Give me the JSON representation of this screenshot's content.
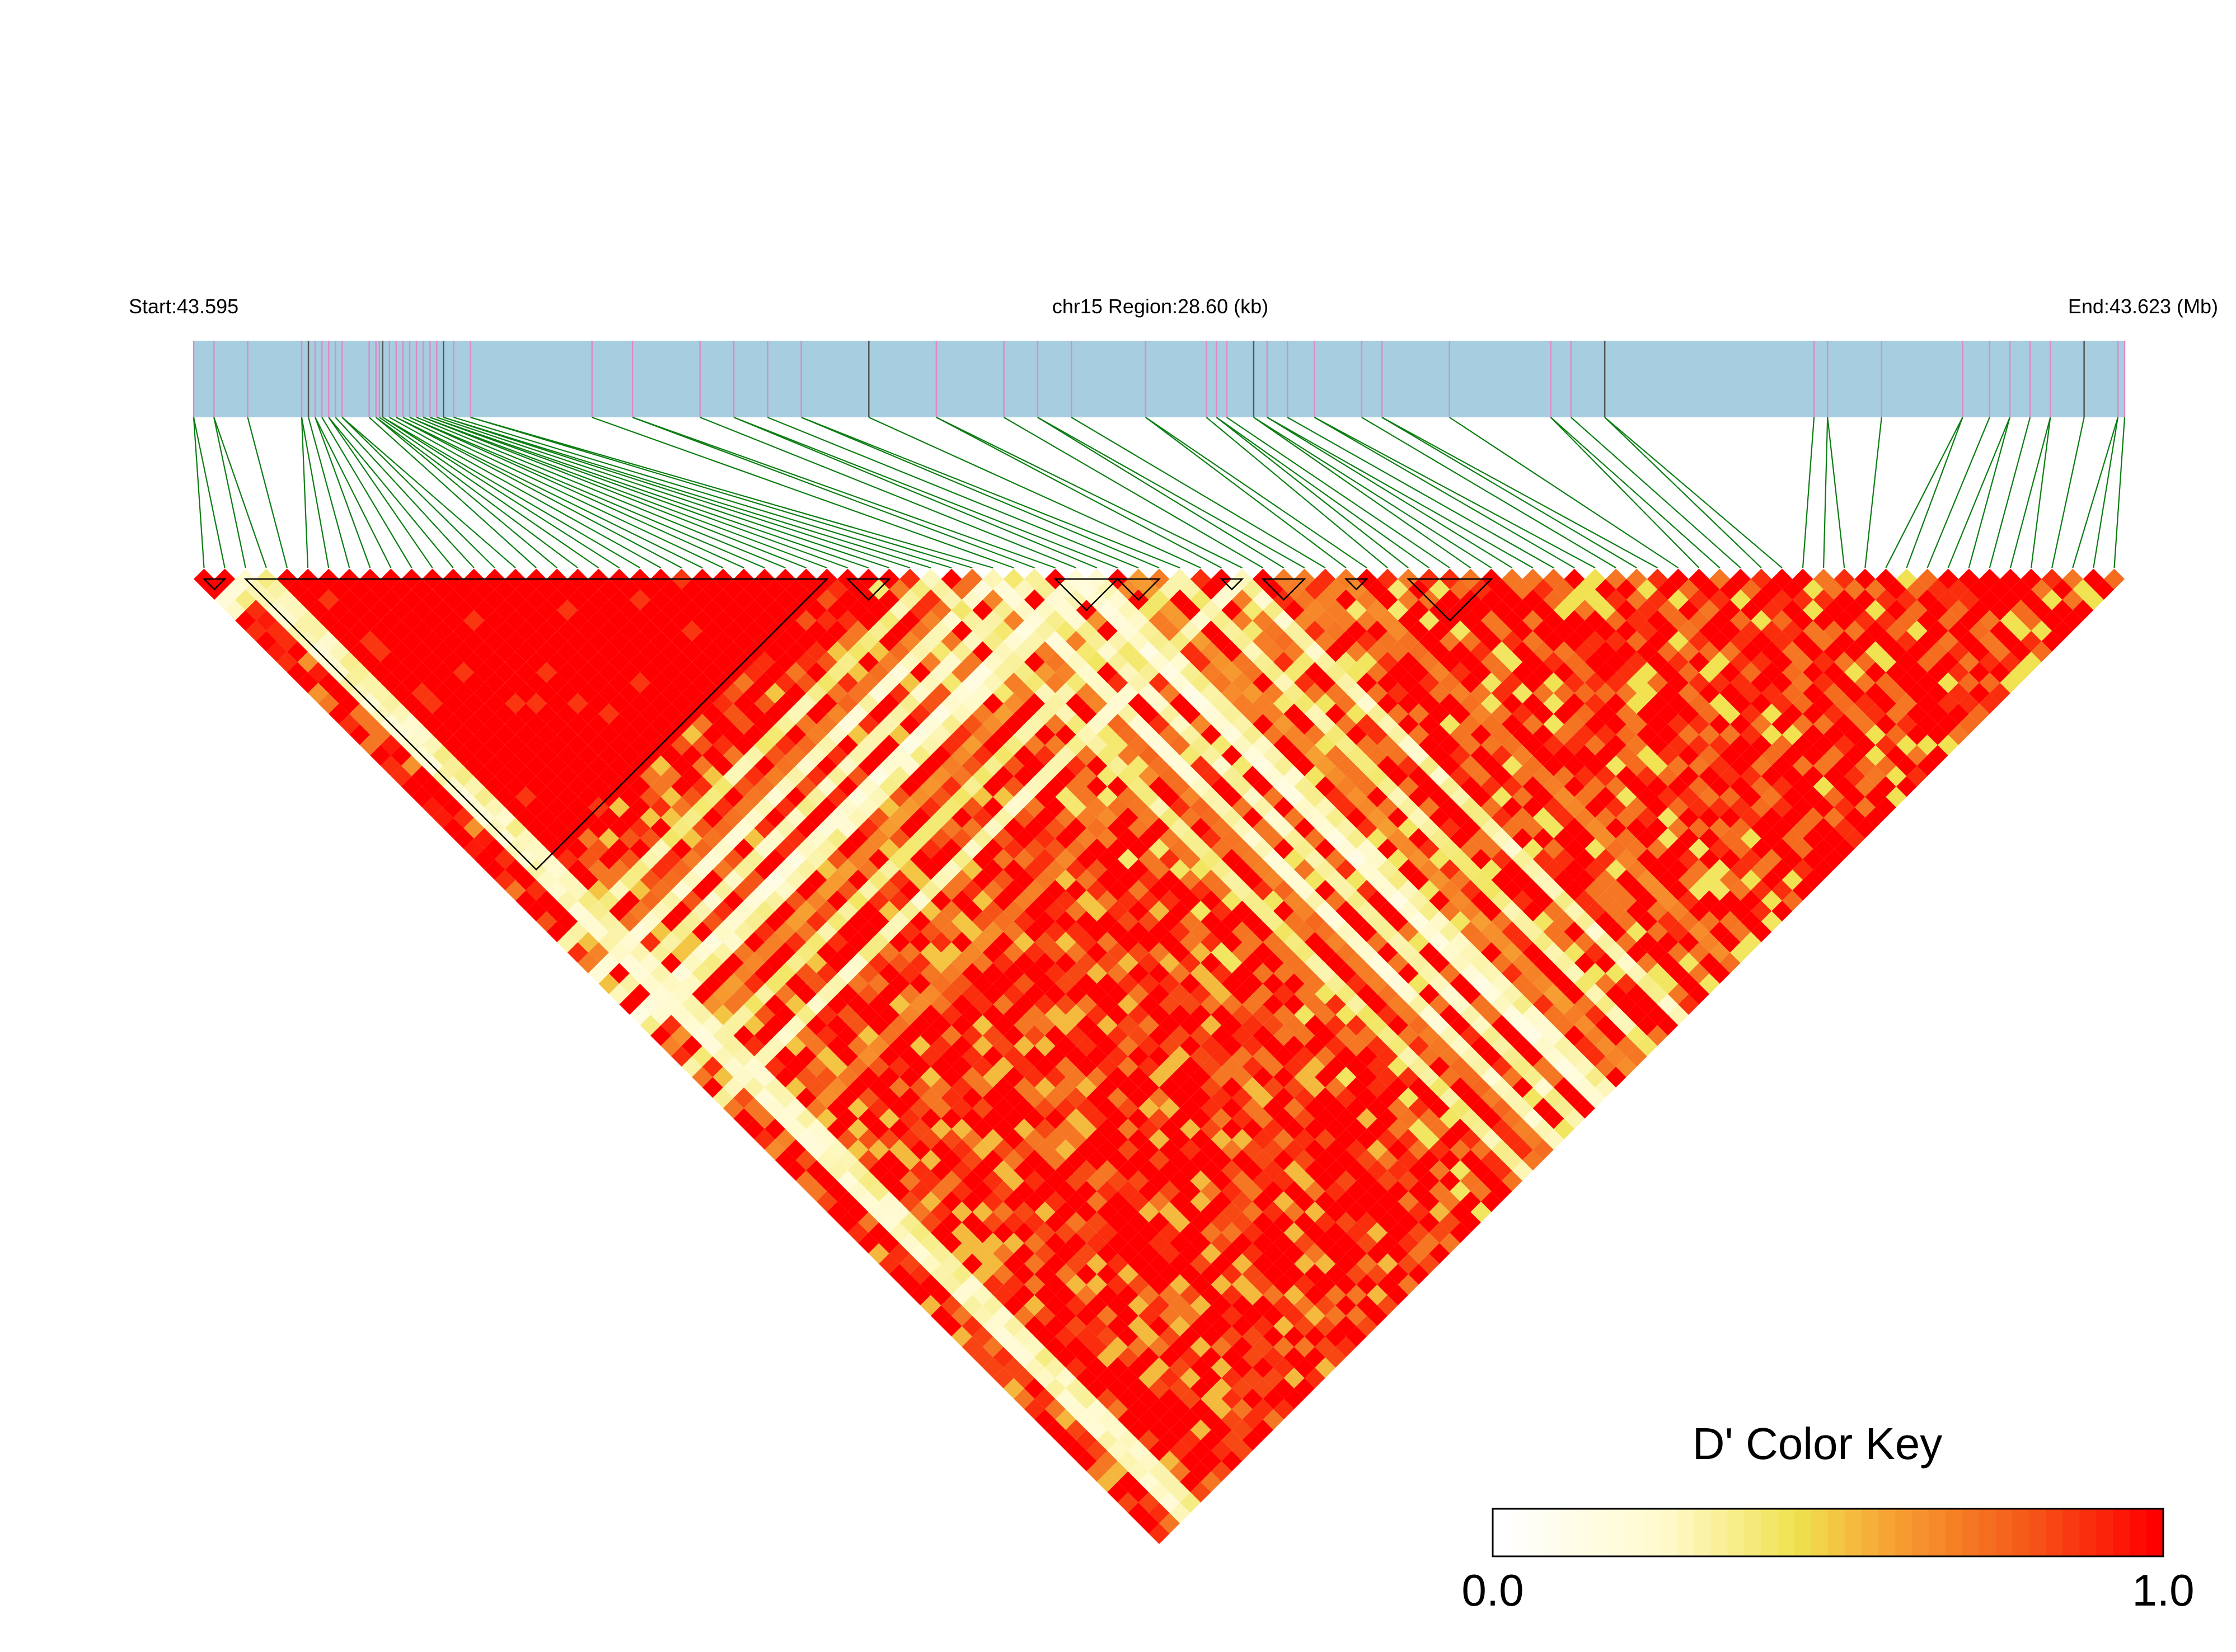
{
  "header": {
    "start_label": "Start:43.595",
    "region_label": "chr15 Region:28.60 (kb)",
    "end_label": "End:43.623 (Mb)"
  },
  "region": {
    "chromosome": "chr15",
    "start_mb": 43.595,
    "end_mb": 43.623,
    "length_kb": 28.6
  },
  "snp_positions_kb": [
    0.0,
    0.3,
    0.8,
    1.6,
    1.7,
    1.8,
    1.9,
    2.0,
    2.1,
    2.2,
    2.6,
    2.7,
    2.75,
    2.8,
    2.9,
    3.0,
    3.1,
    3.2,
    3.3,
    3.4,
    3.5,
    3.6,
    3.7,
    3.85,
    4.1,
    5.9,
    6.5,
    7.5,
    8.0,
    8.5,
    9.0,
    10.0,
    11.0,
    12.0,
    12.5,
    13.0,
    14.1,
    15.0,
    15.15,
    15.3,
    15.7,
    15.9,
    16.2,
    16.6,
    17.3,
    17.6,
    18.6,
    20.1,
    20.4,
    20.9,
    24.0,
    24.2,
    25.0,
    26.2,
    26.6,
    26.9,
    27.2,
    27.5,
    28.0,
    28.5,
    28.6
  ],
  "block_triangles": [
    [
      0,
      2
    ],
    [
      2,
      31
    ],
    [
      31,
      34
    ],
    [
      41,
      45
    ],
    [
      44,
      47
    ],
    [
      49,
      51
    ],
    [
      51,
      54
    ],
    [
      55,
      57
    ],
    [
      58,
      63
    ]
  ],
  "legend": {
    "title": "D' Color Key",
    "min_label": "0.0",
    "max_label": "1.0",
    "colors": [
      "#ffffff",
      "#fffad0",
      "#fbf3a4",
      "#f3ea73",
      "#efe14a",
      "#f6c040",
      "#f69a30",
      "#f6701e",
      "#f34410",
      "#ff0000"
    ]
  },
  "colors": {
    "track_fill": "#a6cde0",
    "snp_tick": "#e08ac6",
    "snp_tick_dark": "#555555",
    "connector": "#0b7d12",
    "strong_ld": "#ff0000"
  },
  "chart_data": {
    "type": "heatmap",
    "metric": "D'",
    "value_range": [
      0.0,
      1.0
    ],
    "marker_count": 93,
    "regions": [
      {
        "from": 0,
        "to": 2,
        "value": 1.0
      },
      {
        "from": 2,
        "to": 31,
        "value": 0.98
      },
      {
        "from": 31,
        "to": 60,
        "value": 0.75
      },
      {
        "from": 60,
        "to": 93,
        "value": 0.8
      }
    ],
    "pale_bands": [
      {
        "marker": 2,
        "value": 0.25
      },
      {
        "marker": 3,
        "value": 0.3
      },
      {
        "marker": 35,
        "value": 0.35
      },
      {
        "marker": 38,
        "value": 0.25
      },
      {
        "marker": 40,
        "value": 0.3
      },
      {
        "marker": 42,
        "value": 0.2
      },
      {
        "marker": 43,
        "value": 0.3
      },
      {
        "marker": 47,
        "value": 0.35
      },
      {
        "marker": 50,
        "value": 0.3
      }
    ],
    "medium_bands": [
      {
        "marker": 37,
        "value": 0.72
      },
      {
        "marker": 45,
        "value": 0.65
      },
      {
        "marker": 55,
        "value": 0.7
      }
    ]
  }
}
